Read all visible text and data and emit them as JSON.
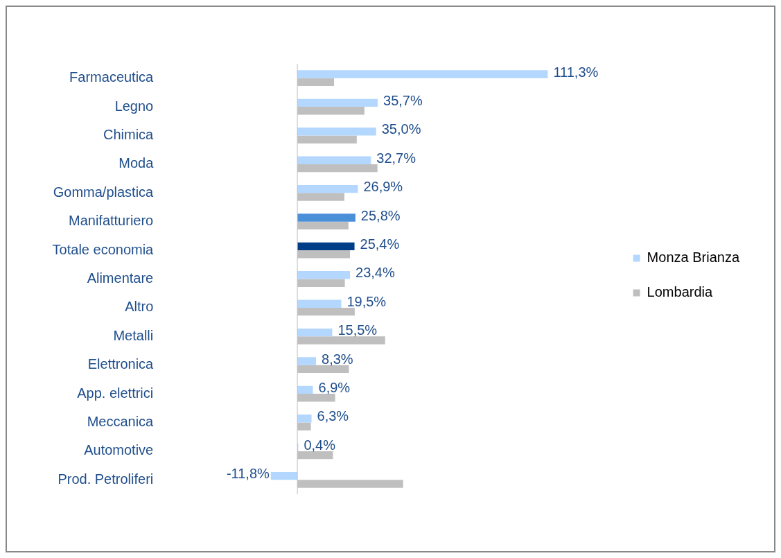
{
  "chart_data": {
    "type": "bar",
    "orientation": "horizontal",
    "categories": [
      "Farmaceutica",
      "Legno",
      "Chimica",
      "Moda",
      "Gomma/plastica",
      "Manifatturiero",
      "Totale economia",
      "Alimentare",
      "Altro",
      "Metalli",
      "Elettronica",
      "App. elettrici",
      "Meccanica",
      "Automotive",
      "Prod. Petroliferi"
    ],
    "series": [
      {
        "name": "Monza Brianza",
        "color": "#b3d7ff",
        "colors": [
          "#b3d7ff",
          "#b3d7ff",
          "#b3d7ff",
          "#b3d7ff",
          "#b3d7ff",
          "#4a90d9",
          "#003f87",
          "#b3d7ff",
          "#b3d7ff",
          "#b3d7ff",
          "#b3d7ff",
          "#b3d7ff",
          "#b3d7ff",
          "#b3d7ff",
          "#b3d7ff"
        ],
        "values": [
          111.3,
          35.7,
          35.0,
          32.7,
          26.9,
          25.8,
          25.4,
          23.4,
          19.5,
          15.5,
          8.3,
          6.9,
          6.3,
          0.4,
          -11.8
        ],
        "value_labels": [
          "111,3%",
          "35,7%",
          "35,0%",
          "32,7%",
          "26,9%",
          "25,8%",
          "25,4%",
          "23,4%",
          "19,5%",
          "15,5%",
          "8,3%",
          "6,9%",
          "6,3%",
          "0,4%",
          "-11,8%"
        ]
      },
      {
        "name": "Lombardia",
        "color": "#bfbfbf",
        "values": [
          16.3,
          29.8,
          26.4,
          35.6,
          20.9,
          22.7,
          23.4,
          21.1,
          25.5,
          39.0,
          22.9,
          16.8,
          6.0,
          15.8,
          47.0
        ]
      }
    ],
    "tick_labels": "y",
    "legend": "right"
  }
}
